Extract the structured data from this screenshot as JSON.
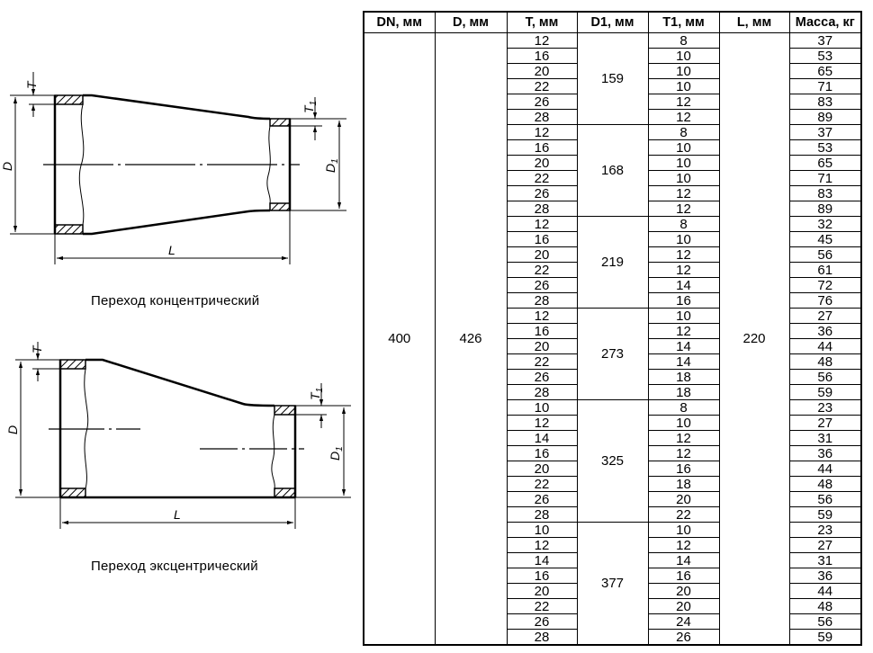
{
  "drawings": {
    "concentric": {
      "caption": "Переход концентрический",
      "labels": {
        "T": "T",
        "D": "D",
        "D1": "D",
        "D1_sub": "1",
        "T1": "T",
        "T1_sub": "1",
        "L": "L"
      }
    },
    "eccentric": {
      "caption": "Переход эксцентрический",
      "labels": {
        "T": "T",
        "D": "D",
        "D1": "D",
        "D1_sub": "1",
        "T1": "T",
        "T1_sub": "1",
        "L": "L"
      }
    }
  },
  "table": {
    "headers": [
      "DN, мм",
      "D, мм",
      "T, мм",
      "D1, мм",
      "T1, мм",
      "L, мм",
      "Масса, кг"
    ],
    "dn": "400",
    "d": "426",
    "l": "220",
    "groups": [
      {
        "d1": "159",
        "rows": [
          {
            "t": "12",
            "t1": "8",
            "mass": "37"
          },
          {
            "t": "16",
            "t1": "10",
            "mass": "53"
          },
          {
            "t": "20",
            "t1": "10",
            "mass": "65"
          },
          {
            "t": "22",
            "t1": "10",
            "mass": "71"
          },
          {
            "t": "26",
            "t1": "12",
            "mass": "83"
          },
          {
            "t": "28",
            "t1": "12",
            "mass": "89"
          }
        ]
      },
      {
        "d1": "168",
        "rows": [
          {
            "t": "12",
            "t1": "8",
            "mass": "37"
          },
          {
            "t": "16",
            "t1": "10",
            "mass": "53"
          },
          {
            "t": "20",
            "t1": "10",
            "mass": "65"
          },
          {
            "t": "22",
            "t1": "10",
            "mass": "71"
          },
          {
            "t": "26",
            "t1": "12",
            "mass": "83"
          },
          {
            "t": "28",
            "t1": "12",
            "mass": "89"
          }
        ]
      },
      {
        "d1": "219",
        "rows": [
          {
            "t": "12",
            "t1": "8",
            "mass": "32"
          },
          {
            "t": "16",
            "t1": "10",
            "mass": "45"
          },
          {
            "t": "20",
            "t1": "12",
            "mass": "56"
          },
          {
            "t": "22",
            "t1": "12",
            "mass": "61"
          },
          {
            "t": "26",
            "t1": "14",
            "mass": "72"
          },
          {
            "t": "28",
            "t1": "16",
            "mass": "76"
          }
        ]
      },
      {
        "d1": "273",
        "rows": [
          {
            "t": "12",
            "t1": "10",
            "mass": "27"
          },
          {
            "t": "16",
            "t1": "12",
            "mass": "36"
          },
          {
            "t": "20",
            "t1": "14",
            "mass": "44"
          },
          {
            "t": "22",
            "t1": "14",
            "mass": "48"
          },
          {
            "t": "26",
            "t1": "18",
            "mass": "56"
          },
          {
            "t": "28",
            "t1": "18",
            "mass": "59"
          }
        ]
      },
      {
        "d1": "325",
        "rows": [
          {
            "t": "10",
            "t1": "8",
            "mass": "23"
          },
          {
            "t": "12",
            "t1": "10",
            "mass": "27"
          },
          {
            "t": "14",
            "t1": "12",
            "mass": "31"
          },
          {
            "t": "16",
            "t1": "12",
            "mass": "36"
          },
          {
            "t": "20",
            "t1": "16",
            "mass": "44"
          },
          {
            "t": "22",
            "t1": "18",
            "mass": "48"
          },
          {
            "t": "26",
            "t1": "20",
            "mass": "56"
          },
          {
            "t": "28",
            "t1": "22",
            "mass": "59"
          }
        ]
      },
      {
        "d1": "377",
        "rows": [
          {
            "t": "10",
            "t1": "10",
            "mass": "23"
          },
          {
            "t": "12",
            "t1": "12",
            "mass": "27"
          },
          {
            "t": "14",
            "t1": "14",
            "mass": "31"
          },
          {
            "t": "16",
            "t1": "16",
            "mass": "36"
          },
          {
            "t": "20",
            "t1": "20",
            "mass": "44"
          },
          {
            "t": "22",
            "t1": "20",
            "mass": "48"
          },
          {
            "t": "26",
            "t1": "24",
            "mass": "56"
          },
          {
            "t": "28",
            "t1": "26",
            "mass": "59"
          }
        ]
      }
    ]
  }
}
